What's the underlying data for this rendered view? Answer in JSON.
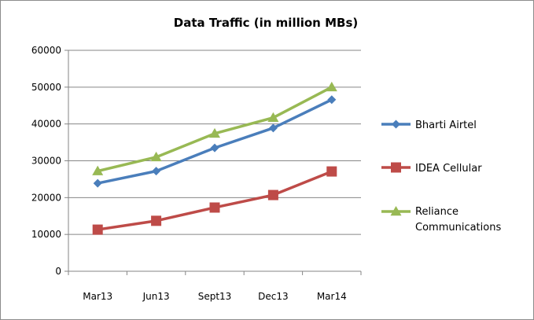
{
  "chart_data": {
    "type": "line",
    "title": "Data Traffic (in million MBs)",
    "xlabel": "",
    "ylabel": "",
    "categories": [
      "Mar13",
      "Jun13",
      "Sept13",
      "Dec13",
      "Mar14"
    ],
    "ylim": [
      0,
      60000
    ],
    "yticks": [
      "0",
      "10000",
      "20000",
      "30000",
      "40000",
      "50000",
      "60000"
    ],
    "grid": true,
    "legend_position": "right",
    "series": [
      {
        "name": "Bharti Airtel",
        "color": "#4a7ebb",
        "marker": "diamond",
        "values": [
          23900,
          27200,
          33500,
          38900,
          46600
        ]
      },
      {
        "name": "IDEA Cellular",
        "color": "#be4b48",
        "marker": "square",
        "values": [
          11300,
          13700,
          17300,
          20700,
          27100
        ]
      },
      {
        "name": "Reliance Communications",
        "color": "#98b954",
        "marker": "triangle",
        "legend_lines": [
          "Reliance",
          "Communications"
        ],
        "values": [
          27200,
          31000,
          37400,
          41700,
          50000
        ]
      }
    ]
  }
}
